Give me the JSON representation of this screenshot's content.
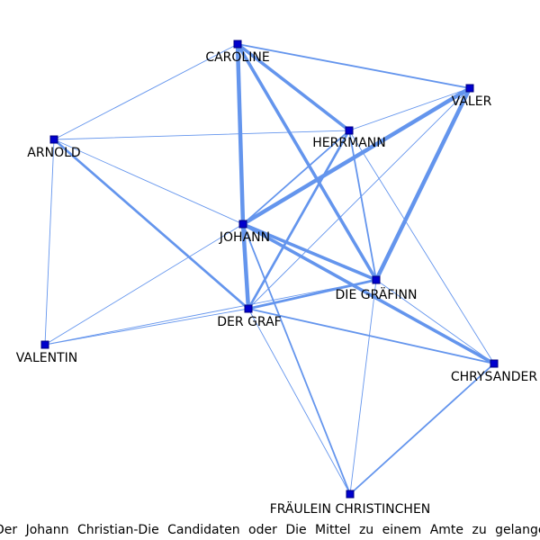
{
  "caption": "Der Johann Christian-Die Candidaten oder Die Mittel zu einem Amte zu gelangen",
  "colors": {
    "edge": "#6495ed",
    "node_fill": "#0000cd",
    "node_stroke": "#000080",
    "background": "#ffffff"
  },
  "nodes": [
    {
      "id": "caroline",
      "label": "CAROLINE"
    },
    {
      "id": "valer",
      "label": "VALER"
    },
    {
      "id": "arnold",
      "label": "ARNOLD"
    },
    {
      "id": "herrmann",
      "label": "HERRMANN"
    },
    {
      "id": "johann",
      "label": "JOHANN"
    },
    {
      "id": "graefinn",
      "label": "DIE GRÄFINN"
    },
    {
      "id": "graf",
      "label": "DER GRAF"
    },
    {
      "id": "valentin",
      "label": "VALENTIN"
    },
    {
      "id": "chrysander",
      "label": "CHRYSANDER"
    },
    {
      "id": "christinchen",
      "label": "FRÄULEIN CHRISTINCHEN"
    }
  ],
  "edges": [
    {
      "source": "caroline",
      "target": "valer",
      "weight": 2
    },
    {
      "source": "caroline",
      "target": "arnold",
      "weight": 1
    },
    {
      "source": "caroline",
      "target": "herrmann",
      "weight": 4
    },
    {
      "source": "caroline",
      "target": "johann",
      "weight": 5
    },
    {
      "source": "caroline",
      "target": "graefinn",
      "weight": 4
    },
    {
      "source": "valer",
      "target": "johann",
      "weight": 5
    },
    {
      "source": "valer",
      "target": "graefinn",
      "weight": 5
    },
    {
      "source": "valer",
      "target": "herrmann",
      "weight": 1
    },
    {
      "source": "valer",
      "target": "graf",
      "weight": 1
    },
    {
      "source": "arnold",
      "target": "herrmann",
      "weight": 1
    },
    {
      "source": "arnold",
      "target": "graf",
      "weight": 3
    },
    {
      "source": "arnold",
      "target": "johann",
      "weight": 1
    },
    {
      "source": "arnold",
      "target": "valentin",
      "weight": 1
    },
    {
      "source": "herrmann",
      "target": "johann",
      "weight": 2
    },
    {
      "source": "herrmann",
      "target": "graf",
      "weight": 3
    },
    {
      "source": "herrmann",
      "target": "graefinn",
      "weight": 2
    },
    {
      "source": "herrmann",
      "target": "chrysander",
      "weight": 1
    },
    {
      "source": "johann",
      "target": "graefinn",
      "weight": 4
    },
    {
      "source": "johann",
      "target": "graf",
      "weight": 5
    },
    {
      "source": "johann",
      "target": "chrysander",
      "weight": 4
    },
    {
      "source": "johann",
      "target": "valentin",
      "weight": 1
    },
    {
      "source": "johann",
      "target": "christinchen",
      "weight": 2
    },
    {
      "source": "graefinn",
      "target": "graf",
      "weight": 3
    },
    {
      "source": "graefinn",
      "target": "valentin",
      "weight": 1
    },
    {
      "source": "graefinn",
      "target": "chrysander",
      "weight": 1
    },
    {
      "source": "graefinn",
      "target": "christinchen",
      "weight": 1
    },
    {
      "source": "graf",
      "target": "valentin",
      "weight": 1
    },
    {
      "source": "graf",
      "target": "chrysander",
      "weight": 2
    },
    {
      "source": "graf",
      "target": "christinchen",
      "weight": 1
    },
    {
      "source": "chrysander",
      "target": "christinchen",
      "weight": 2
    }
  ]
}
